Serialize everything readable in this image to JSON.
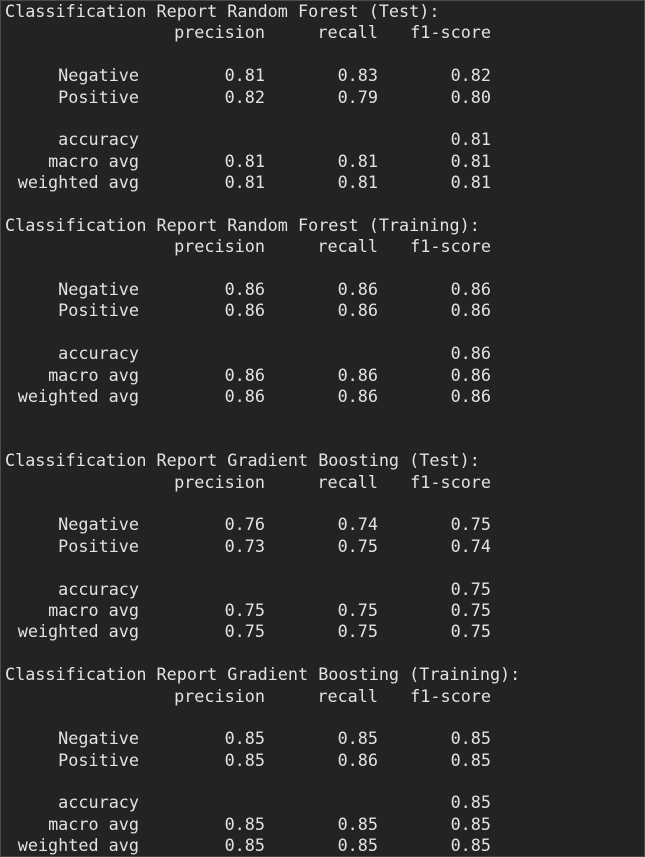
{
  "header_labels": {
    "precision": "precision",
    "recall": "recall",
    "f1": "f1-score"
  },
  "reports": [
    {
      "title": "Classification Report Random Forest (Test):",
      "classes": [
        {
          "label": "Negative",
          "precision": "0.81",
          "recall": "0.83",
          "f1": "0.82"
        },
        {
          "label": "Positive",
          "precision": "0.82",
          "recall": "0.79",
          "f1": "0.80"
        }
      ],
      "summary": [
        {
          "label": "accuracy",
          "precision": "",
          "recall": "",
          "f1": "0.81"
        },
        {
          "label": "macro avg",
          "precision": "0.81",
          "recall": "0.81",
          "f1": "0.81"
        },
        {
          "label": "weighted avg",
          "precision": "0.81",
          "recall": "0.81",
          "f1": "0.81"
        }
      ]
    },
    {
      "title": "Classification Report Random Forest (Training):",
      "classes": [
        {
          "label": "Negative",
          "precision": "0.86",
          "recall": "0.86",
          "f1": "0.86"
        },
        {
          "label": "Positive",
          "precision": "0.86",
          "recall": "0.86",
          "f1": "0.86"
        }
      ],
      "summary": [
        {
          "label": "accuracy",
          "precision": "",
          "recall": "",
          "f1": "0.86"
        },
        {
          "label": "macro avg",
          "precision": "0.86",
          "recall": "0.86",
          "f1": "0.86"
        },
        {
          "label": "weighted avg",
          "precision": "0.86",
          "recall": "0.86",
          "f1": "0.86"
        }
      ]
    },
    {
      "title": "Classification Report Gradient Boosting (Test):",
      "classes": [
        {
          "label": "Negative",
          "precision": "0.76",
          "recall": "0.74",
          "f1": "0.75"
        },
        {
          "label": "Positive",
          "precision": "0.73",
          "recall": "0.75",
          "f1": "0.74"
        }
      ],
      "summary": [
        {
          "label": "accuracy",
          "precision": "",
          "recall": "",
          "f1": "0.75"
        },
        {
          "label": "macro avg",
          "precision": "0.75",
          "recall": "0.75",
          "f1": "0.75"
        },
        {
          "label": "weighted avg",
          "precision": "0.75",
          "recall": "0.75",
          "f1": "0.75"
        }
      ]
    },
    {
      "title": "Classification Report Gradient Boosting (Training):",
      "classes": [
        {
          "label": "Negative",
          "precision": "0.85",
          "recall": "0.85",
          "f1": "0.85"
        },
        {
          "label": "Positive",
          "precision": "0.85",
          "recall": "0.86",
          "f1": "0.85"
        }
      ],
      "summary": [
        {
          "label": "accuracy",
          "precision": "",
          "recall": "",
          "f1": "0.85"
        },
        {
          "label": "macro avg",
          "precision": "0.85",
          "recall": "0.85",
          "f1": "0.85"
        },
        {
          "label": "weighted avg",
          "precision": "0.85",
          "recall": "0.85",
          "f1": "0.85"
        }
      ]
    }
  ]
}
